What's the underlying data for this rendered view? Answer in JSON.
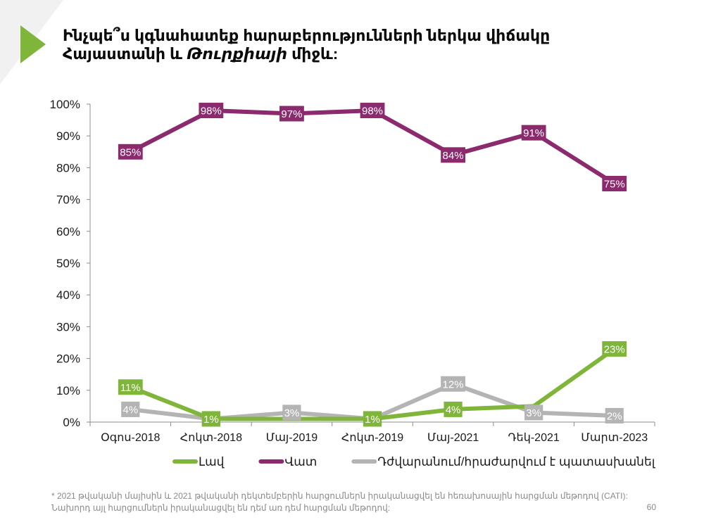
{
  "title": {
    "line1": "Ինչպե՞ս կգնահատեք հարաբերությունների ներկա վիճակը",
    "line2_start": "Հայաստանի և ",
    "line2_italic": "Թուրքիայի",
    "line2_end": " միջև:"
  },
  "chart_data": {
    "type": "line",
    "categories": [
      "Օգոս-2018",
      "Հոկտ-2018",
      "Մայ-2019",
      "Հոկտ-2019",
      "Մայ-2021",
      "Դեկ-2021",
      "Մարտ-2023"
    ],
    "y_ticks": [
      "0%",
      "10%",
      "20%",
      "30%",
      "40%",
      "50%",
      "60%",
      "70%",
      "80%",
      "90%",
      "100%"
    ],
    "ylim": [
      0,
      100
    ],
    "grid": false,
    "legend_position": "bottom",
    "series": [
      {
        "name": "Լավ",
        "color": "#7fb539",
        "values": [
          11,
          1,
          null,
          1,
          4,
          5,
          23
        ],
        "labels": [
          "11%",
          "1%",
          null,
          "1%",
          "4%",
          null,
          "23%"
        ]
      },
      {
        "name": "Վատ",
        "color": "#8b2a6d",
        "values": [
          85,
          98,
          97,
          98,
          84,
          91,
          75
        ],
        "labels": [
          "85%",
          "98%",
          "97%",
          "98%",
          "84%",
          "91%",
          "75%"
        ]
      },
      {
        "name": "Դժվարանում/հրաժարվում է պատասխանել",
        "color": "#b4b4b4",
        "values": [
          4,
          1,
          3,
          1,
          12,
          3,
          2
        ],
        "labels": [
          "4%",
          "1%",
          "3%",
          "1%",
          "12%",
          "3%",
          "2%"
        ]
      }
    ]
  },
  "footnote": "* 2021 թվականի մայիսին և 2021 թվականի դեկտեմբերին հարցումներն իրականացվել են հեռախոսային հարցման մեթոդով (CATI): Նախորդ այլ հարցումներն իրականացվել են դեմ առ դեմ հարցման մեթոդով:",
  "page_number": "60"
}
